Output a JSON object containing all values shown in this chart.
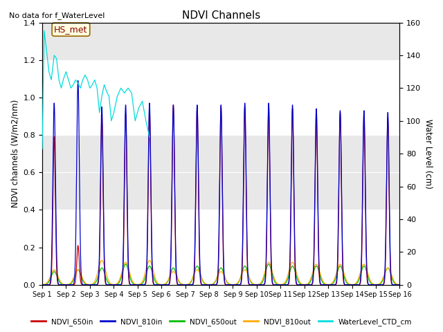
{
  "title": "NDVI Channels",
  "ylabel_left": "NDVI channels (W/m2/nm)",
  "ylabel_right": "Water Level (cm)",
  "no_data_text": "No data for f_WaterLevel",
  "annotation_text": "HS_met",
  "ylim_left": [
    0,
    1.4
  ],
  "ylim_right": [
    0,
    160
  ],
  "yticks_left": [
    0.0,
    0.2,
    0.4,
    0.6,
    0.8,
    1.0,
    1.2,
    1.4
  ],
  "yticks_right": [
    0,
    20,
    40,
    60,
    80,
    100,
    120,
    140,
    160
  ],
  "background_color": "#e8e8e8",
  "colors": {
    "NDVI_650in": "#cc0000",
    "NDVI_810in": "#0000cc",
    "NDVI_650out": "#00bb00",
    "NDVI_810out": "#ffaa00",
    "WaterLevel_CTD_cm": "#00dddd"
  },
  "xticklabels": [
    "Sep 1",
    "Sep 2",
    "Sep 3",
    "Sep 4",
    "Sep 5",
    "Sep 6",
    "Sep 7",
    "Sep 8",
    "Sep 9",
    "Sep 10",
    "Sep 11",
    "Sep 12",
    "Sep 13",
    "Sep 14",
    "Sep 15",
    "Sep 16"
  ],
  "xtick_positions": [
    0,
    1,
    2,
    3,
    4,
    5,
    6,
    7,
    8,
    9,
    10,
    11,
    12,
    13,
    14,
    15
  ],
  "pulse_days": [
    1,
    2,
    3,
    4,
    5,
    6,
    7,
    8,
    9,
    10,
    11,
    12,
    13,
    14,
    15
  ],
  "ndvi_810in_peaks": [
    0.97,
    1.09,
    0.95,
    0.96,
    0.97,
    0.96,
    0.96,
    0.96,
    0.97,
    0.97,
    0.96,
    0.94,
    0.93,
    0.93,
    0.92
  ],
  "ndvi_650in_peaks": [
    0.79,
    0.21,
    0.9,
    0.91,
    0.94,
    0.96,
    0.95,
    0.95,
    0.95,
    0.96,
    0.94,
    0.93,
    0.92,
    0.9,
    0.89
  ],
  "ndvi_650out_peaks": [
    0.07,
    0.08,
    0.09,
    0.11,
    0.1,
    0.09,
    0.1,
    0.09,
    0.1,
    0.11,
    0.1,
    0.1,
    0.1,
    0.1,
    0.09
  ],
  "ndvi_810out_peaks": [
    0.08,
    0.08,
    0.13,
    0.12,
    0.13,
    0.07,
    0.08,
    0.07,
    0.08,
    0.12,
    0.12,
    0.11,
    0.11,
    0.11,
    0.09
  ],
  "water_times": [
    0.0,
    0.08,
    0.18,
    0.28,
    0.38,
    0.5,
    0.6,
    0.7,
    0.8,
    0.9,
    1.0,
    1.1,
    1.2,
    1.3,
    1.4,
    1.5,
    1.6,
    1.7,
    1.8,
    1.9,
    2.0,
    2.1,
    2.2,
    2.3,
    2.4,
    2.5,
    2.6,
    2.7,
    2.8,
    2.9,
    3.0,
    3.15,
    3.3,
    3.45,
    3.6,
    3.75,
    3.9,
    4.05,
    4.2,
    4.35,
    4.5
  ],
  "water_values": [
    83,
    155,
    143,
    130,
    125,
    140,
    138,
    125,
    120,
    126,
    130,
    125,
    120,
    122,
    125,
    123,
    120,
    125,
    128,
    125,
    120,
    122,
    125,
    120,
    105,
    115,
    122,
    118,
    115,
    100,
    105,
    115,
    120,
    117,
    120,
    117,
    100,
    108,
    112,
    100,
    90
  ]
}
